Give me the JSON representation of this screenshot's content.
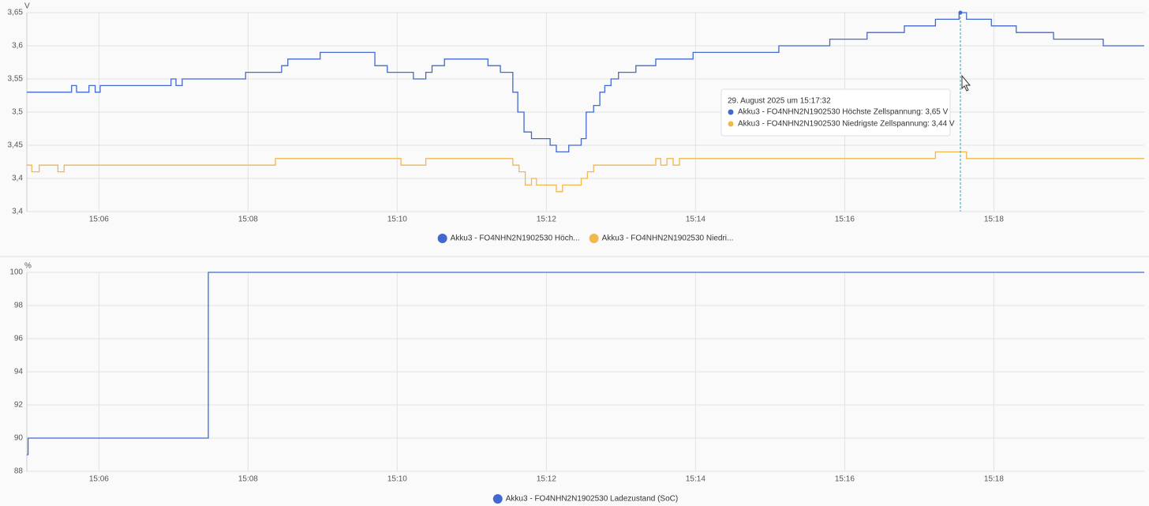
{
  "chart_data": [
    {
      "type": "line",
      "step": true,
      "y_unit": "V",
      "xlim": [
        "15:05:02",
        "15:20:01"
      ],
      "xticks": [
        {
          "value": "15:06:00",
          "label": "15:06"
        },
        {
          "value": "15:08:00",
          "label": "15:08"
        },
        {
          "value": "15:10:00",
          "label": "15:10"
        },
        {
          "value": "15:12:00",
          "label": "15:12"
        },
        {
          "value": "15:14:00",
          "label": "15:14"
        },
        {
          "value": "15:16:00",
          "label": "15:16"
        },
        {
          "value": "15:18:00",
          "label": "15:18"
        }
      ],
      "ylim": [
        3.35,
        3.65
      ],
      "yticks": [
        {
          "value": 3.35,
          "label": "3,4"
        },
        {
          "value": 3.4,
          "label": "3,4"
        },
        {
          "value": 3.45,
          "label": "3,45"
        },
        {
          "value": 3.5,
          "label": "3,5"
        },
        {
          "value": 3.55,
          "label": "3,55"
        },
        {
          "value": 3.6,
          "label": "3,6"
        },
        {
          "value": 3.65,
          "label": "3,65"
        }
      ],
      "grid": true,
      "series": [
        {
          "name": "Akku3 - FO4NHN2N1902530 Höch...",
          "color": "#4169cf",
          "x": [
            "15:05:02",
            "15:05:38",
            "15:05:42",
            "15:05:52",
            "15:05:57",
            "15:06:01",
            "15:06:58",
            "15:07:02",
            "15:07:07",
            "15:07:58",
            "15:08:27",
            "15:08:32",
            "15:08:58",
            "15:09:42",
            "15:09:52",
            "15:10:13",
            "15:10:23",
            "15:10:28",
            "15:10:38",
            "15:11:13",
            "15:11:23",
            "15:11:33",
            "15:11:37",
            "15:11:42",
            "15:11:48",
            "15:12:03",
            "15:12:08",
            "15:12:18",
            "15:12:28",
            "15:12:32",
            "15:12:38",
            "15:12:43",
            "15:12:47",
            "15:12:52",
            "15:12:58",
            "15:13:12",
            "15:13:28",
            "15:13:58",
            "15:15:07",
            "15:15:48",
            "15:16:18",
            "15:16:48",
            "15:17:13",
            "15:17:32",
            "15:17:38",
            "15:17:58",
            "15:18:18",
            "15:18:48",
            "15:19:28"
          ],
          "values": [
            3.53,
            3.54,
            3.53,
            3.54,
            3.53,
            3.54,
            3.55,
            3.54,
            3.55,
            3.56,
            3.57,
            3.58,
            3.59,
            3.57,
            3.56,
            3.55,
            3.56,
            3.57,
            3.58,
            3.57,
            3.56,
            3.53,
            3.5,
            3.47,
            3.46,
            3.45,
            3.44,
            3.45,
            3.46,
            3.5,
            3.51,
            3.53,
            3.54,
            3.55,
            3.56,
            3.57,
            3.58,
            3.59,
            3.6,
            3.61,
            3.62,
            3.63,
            3.64,
            3.65,
            3.64,
            3.63,
            3.62,
            3.61,
            3.6
          ]
        },
        {
          "name": "Akku3 - FO4NHN2N1902530 Niedri...",
          "color": "#f2b84b",
          "x": [
            "15:05:02",
            "15:05:06",
            "15:05:12",
            "15:05:27",
            "15:05:32",
            "15:08:22",
            "15:10:03",
            "15:10:23",
            "15:11:33",
            "15:11:38",
            "15:11:43",
            "15:11:48",
            "15:11:52",
            "15:12:08",
            "15:12:13",
            "15:12:28",
            "15:12:33",
            "15:12:38",
            "15:13:28",
            "15:13:32",
            "15:13:37",
            "15:13:42",
            "15:13:47",
            "15:17:13",
            "15:17:38"
          ],
          "values": [
            3.42,
            3.41,
            3.42,
            3.41,
            3.42,
            3.43,
            3.42,
            3.43,
            3.42,
            3.41,
            3.39,
            3.4,
            3.39,
            3.38,
            3.39,
            3.4,
            3.41,
            3.42,
            3.43,
            3.42,
            3.43,
            3.42,
            3.43,
            3.44,
            3.43
          ]
        }
      ],
      "tooltip": {
        "title": "29. August 2025 um 15:17:32",
        "lines": [
          "Akku3 - FO4NHN2N1902530 Höchste Zellspannung: 3,65 V",
          "Akku3 - FO4NHN2N1902530 Niedrigste Zellspannung: 3,44 V"
        ]
      }
    },
    {
      "type": "line",
      "step": true,
      "y_unit": "%",
      "xlim": [
        "15:05:02",
        "15:20:01"
      ],
      "xticks": [
        {
          "value": "15:06:00",
          "label": "15:06"
        },
        {
          "value": "15:08:00",
          "label": "15:08"
        },
        {
          "value": "15:10:00",
          "label": "15:10"
        },
        {
          "value": "15:12:00",
          "label": "15:12"
        },
        {
          "value": "15:14:00",
          "label": "15:14"
        },
        {
          "value": "15:16:00",
          "label": "15:16"
        },
        {
          "value": "15:18:00",
          "label": "15:18"
        }
      ],
      "ylim": [
        88,
        100
      ],
      "yticks": [
        88,
        90,
        92,
        94,
        96,
        98,
        100
      ],
      "grid": true,
      "series": [
        {
          "name": "Akku3 - FO4NHN2N1902530 Ladezustand (SoC)",
          "color": "#4169cf",
          "x": [
            "15:05:02",
            "15:05:03",
            "15:07:28"
          ],
          "values": [
            89,
            90,
            100
          ]
        }
      ]
    }
  ]
}
